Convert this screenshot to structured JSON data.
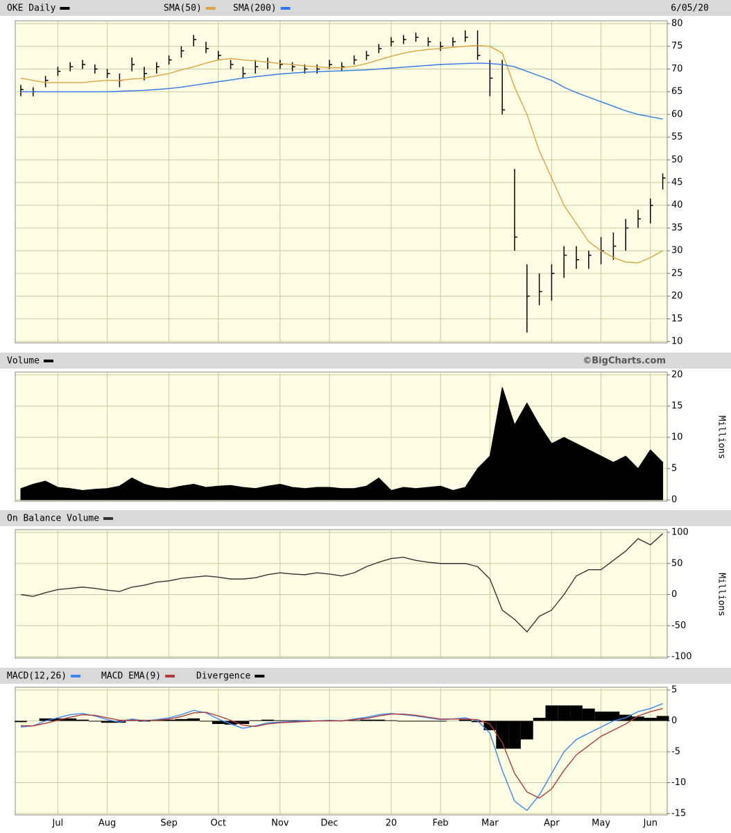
{
  "chart_data": [
    {
      "type": "ohlc",
      "series": [
        {
          "name": "OKE Daily",
          "color": "#000000",
          "high": [
            66.5,
            66,
            68.5,
            70.5,
            71.5,
            72,
            71,
            70,
            69,
            72.5,
            70.5,
            71.5,
            73,
            75,
            77.5,
            76,
            74,
            72,
            70.5,
            72,
            72.5,
            72,
            71.5,
            71,
            71,
            72,
            71.5,
            73,
            74,
            75.5,
            77,
            77.5,
            78,
            77,
            76,
            77,
            78.5,
            78.5,
            72,
            72,
            48,
            27,
            25,
            27,
            31,
            31,
            30,
            33,
            34,
            37,
            39,
            41.5,
            47
          ],
          "low": [
            64,
            64,
            66,
            68.5,
            69.5,
            70,
            69,
            68,
            66,
            69.5,
            67.5,
            69,
            71,
            72.5,
            75,
            73.5,
            72,
            70,
            68,
            69,
            70,
            70,
            69.5,
            69,
            69,
            70,
            69.5,
            71,
            72,
            73.5,
            75,
            75.5,
            76,
            75,
            74,
            75,
            76,
            72,
            64,
            60,
            30,
            12,
            18,
            19,
            24,
            26,
            26,
            27,
            28,
            30,
            35,
            36,
            43.5
          ],
          "close": [
            65.5,
            65,
            67.5,
            69.5,
            70.5,
            71,
            70,
            69,
            67.5,
            71,
            69,
            70.5,
            72,
            74,
            76.5,
            74.5,
            73,
            71,
            69,
            70.5,
            71.5,
            71,
            70.5,
            70,
            70,
            71,
            70.5,
            72,
            73,
            74.5,
            76,
            76.5,
            77,
            76,
            75,
            76,
            77,
            73,
            68,
            61,
            33,
            20,
            21,
            25,
            29,
            28,
            29,
            30,
            31,
            35,
            37,
            40,
            46
          ]
        },
        {
          "name": "SMA(50)",
          "color": "#d9a441",
          "values": [
            68,
            67.5,
            67,
            67,
            67,
            67,
            67.3,
            67.5,
            67.5,
            67.8,
            68,
            68.5,
            69,
            69.8,
            70.5,
            71.3,
            72,
            72.3,
            72,
            71.8,
            71.5,
            71.2,
            71,
            70.7,
            70.5,
            70.3,
            70.3,
            70.6,
            71.2,
            72,
            72.8,
            73.5,
            74,
            74.3,
            74.5,
            74.8,
            75,
            75.2,
            75,
            73.5,
            66,
            60,
            52,
            46,
            40,
            36,
            32,
            30,
            28.5,
            27.5,
            27.3,
            28.5,
            30
          ]
        },
        {
          "name": "SMA(200)",
          "color": "#2f78e6",
          "values": [
            65,
            65,
            65,
            65,
            65,
            65,
            65,
            65,
            65.1,
            65.2,
            65.3,
            65.5,
            65.7,
            66,
            66.4,
            66.8,
            67.2,
            67.6,
            68,
            68.3,
            68.6,
            68.9,
            69.1,
            69.3,
            69.4,
            69.5,
            69.6,
            69.7,
            69.8,
            70,
            70.2,
            70.4,
            70.6,
            70.8,
            71,
            71.1,
            71.2,
            71.3,
            71.2,
            71,
            70.5,
            69.5,
            68.5,
            67.5,
            66,
            64.8,
            63.8,
            62.8,
            61.8,
            60.8,
            60,
            59.5,
            59
          ]
        }
      ],
      "date": "6/05/20",
      "ylim": [
        10,
        80
      ],
      "yticks": [
        10,
        15,
        20,
        25,
        30,
        35,
        40,
        45,
        50,
        55,
        60,
        65,
        70,
        75,
        80
      ],
      "grid": true
    },
    {
      "type": "area",
      "series": [
        {
          "name": "Volume",
          "color": "#000000",
          "values": [
            1.8,
            2.5,
            3,
            2,
            1.8,
            1.5,
            1.7,
            1.8,
            2.2,
            3.5,
            2.5,
            2,
            1.8,
            2.2,
            2.5,
            2,
            2.2,
            2.3,
            2,
            1.8,
            2.2,
            2.5,
            2,
            1.8,
            2,
            2,
            1.8,
            1.8,
            2.2,
            3.5,
            1.5,
            2,
            1.8,
            2,
            2.2,
            1.5,
            2,
            5,
            7,
            18,
            12,
            15.5,
            12,
            9,
            10,
            9,
            8,
            7,
            6,
            7,
            5,
            8,
            6
          ]
        }
      ],
      "source": "©BigCharts.com",
      "ylabel": "Millions",
      "ylim": [
        0,
        20
      ],
      "yticks": [
        0,
        5,
        10,
        15,
        20
      ],
      "grid": true
    },
    {
      "type": "line",
      "series": [
        {
          "name": "On Balance Volume",
          "color": "#333333",
          "values": [
            0,
            -3,
            3,
            8,
            10,
            12,
            10,
            7,
            5,
            12,
            15,
            20,
            22,
            26,
            28,
            30,
            28,
            25,
            25,
            27,
            32,
            35,
            33,
            32,
            35,
            33,
            30,
            35,
            45,
            52,
            58,
            60,
            55,
            52,
            50,
            50,
            50,
            45,
            25,
            -25,
            -40,
            -60,
            -35,
            -25,
            0,
            30,
            40,
            40,
            55,
            70,
            90,
            80,
            98
          ]
        }
      ],
      "ylabel": "Millions",
      "ylim": [
        -100,
        100
      ],
      "yticks": [
        -100,
        -50,
        0,
        50,
        100
      ],
      "grid": true
    },
    {
      "type": "line",
      "categories": [
        null,
        null,
        null,
        "Jul",
        null,
        null,
        null,
        "Aug",
        null,
        null,
        null,
        null,
        "Sep",
        null,
        null,
        null,
        "Oct",
        null,
        null,
        null,
        null,
        "Nov",
        null,
        null,
        null,
        "Dec",
        null,
        null,
        null,
        null,
        "20",
        null,
        null,
        null,
        "Feb",
        null,
        null,
        null,
        "Mar",
        null,
        null,
        null,
        null,
        "Apr",
        null,
        null,
        null,
        "May",
        null,
        null,
        null,
        "Jun",
        null
      ],
      "series": [
        {
          "name": "MACD(12,26)",
          "color": "#3a86f0",
          "values": [
            -1,
            -0.8,
            0,
            0.5,
            1,
            1.2,
            0.8,
            0.2,
            -0.2,
            0.3,
            0,
            0.2,
            0.5,
            1,
            1.7,
            1.3,
            0.3,
            -0.5,
            -1.2,
            -0.8,
            -0.3,
            -0.2,
            -0.1,
            0,
            0,
            0.1,
            0,
            0.3,
            0.6,
            1,
            1.2,
            1,
            0.8,
            0.5,
            0.2,
            0.3,
            0.5,
            0,
            -2,
            -8,
            -13,
            -14.5,
            -12,
            -8.5,
            -5,
            -3,
            -2,
            -1,
            0,
            0.5,
            1.5,
            2,
            2.8
          ]
        },
        {
          "name": "MACD EMA(9)",
          "color": "#b03a3a",
          "values": [
            -0.8,
            -0.8,
            -0.4,
            0.1,
            0.6,
            1,
            0.9,
            0.5,
            0.1,
            0.1,
            0.1,
            0.1,
            0.3,
            0.7,
            1.3,
            1.4,
            0.8,
            0.1,
            -0.7,
            -0.9,
            -0.5,
            -0.3,
            -0.2,
            -0.1,
            0,
            0,
            0,
            0.2,
            0.4,
            0.8,
            1.1,
            1.1,
            0.9,
            0.6,
            0.3,
            0.3,
            0.3,
            0.2,
            -0.5,
            -3.5,
            -8.5,
            -11.5,
            -12.5,
            -11,
            -8,
            -5.5,
            -4,
            -2.5,
            -1.5,
            -0.5,
            0.8,
            1.5,
            2
          ]
        },
        {
          "name": "Divergence",
          "color": "#000000",
          "type": "bar",
          "values": [
            -0.2,
            0,
            0.4,
            0.4,
            0.4,
            0.2,
            -0.1,
            -0.3,
            -0.3,
            0.2,
            -0.1,
            0.1,
            0.2,
            0.3,
            0.4,
            -0.1,
            -0.5,
            -0.6,
            -0.5,
            0.1,
            0.2,
            0.1,
            0.1,
            0.1,
            0,
            0.1,
            0,
            0.1,
            0.2,
            0.2,
            0.1,
            -0.1,
            -0.1,
            -0.1,
            -0.1,
            0,
            0.2,
            -0.2,
            -1.5,
            -4.5,
            -4.5,
            -3,
            0.5,
            2.5,
            2.5,
            2.5,
            2,
            1.5,
            1.5,
            1,
            0.7,
            0.5,
            0.8
          ]
        }
      ],
      "ylim": [
        -15,
        5
      ],
      "yticks": [
        -15,
        -10,
        -5,
        0,
        5
      ],
      "grid": true
    }
  ]
}
